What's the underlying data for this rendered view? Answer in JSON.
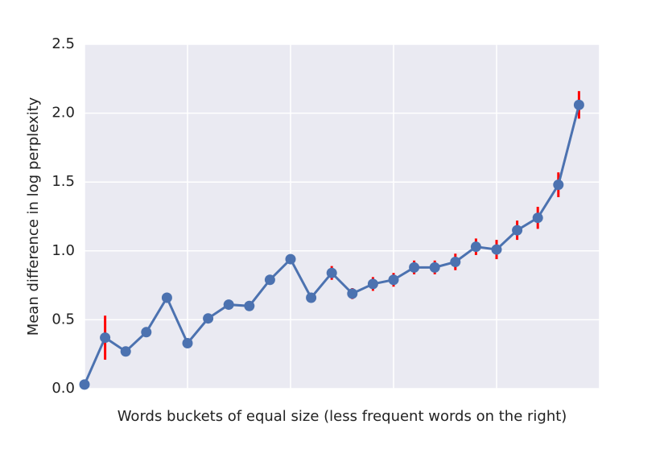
{
  "chart_data": {
    "type": "line",
    "xlabel": "Words buckets of equal size (less frequent words on the right)",
    "ylabel": "Mean difference in log perplexity",
    "x": [
      0,
      1,
      2,
      3,
      4,
      5,
      6,
      7,
      8,
      9,
      10,
      11,
      12,
      13,
      14,
      15,
      16,
      17,
      18,
      19,
      20,
      21,
      22,
      23,
      24
    ],
    "series": [
      {
        "color": "#4c72b0",
        "values": [
          0.03,
          0.37,
          0.27,
          0.41,
          0.66,
          0.33,
          0.51,
          0.61,
          0.6,
          0.79,
          0.94,
          0.66,
          0.84,
          0.69,
          0.76,
          0.79,
          0.88,
          0.88,
          0.92,
          1.03,
          1.01,
          1.15,
          1.24,
          1.48,
          2.06
        ],
        "errors": [
          0.02,
          0.16,
          0.02,
          0.02,
          0.02,
          0.02,
          0.02,
          0.02,
          0.02,
          0.02,
          0.03,
          0.03,
          0.05,
          0.04,
          0.05,
          0.05,
          0.05,
          0.05,
          0.06,
          0.06,
          0.07,
          0.07,
          0.08,
          0.09,
          0.1
        ],
        "error_color": "#ff0000"
      }
    ],
    "xlim": [
      0,
      25
    ],
    "xticks": [
      0,
      5,
      10,
      15,
      20,
      25
    ],
    "ylim": [
      0,
      2.5
    ],
    "yticks": [
      {
        "value": 0,
        "label": "0.0"
      },
      0.5,
      {
        "value": 1,
        "label": "1.0"
      },
      1.5,
      {
        "value": 2,
        "label": "2.0"
      },
      2.5
    ],
    "grid": true
  }
}
